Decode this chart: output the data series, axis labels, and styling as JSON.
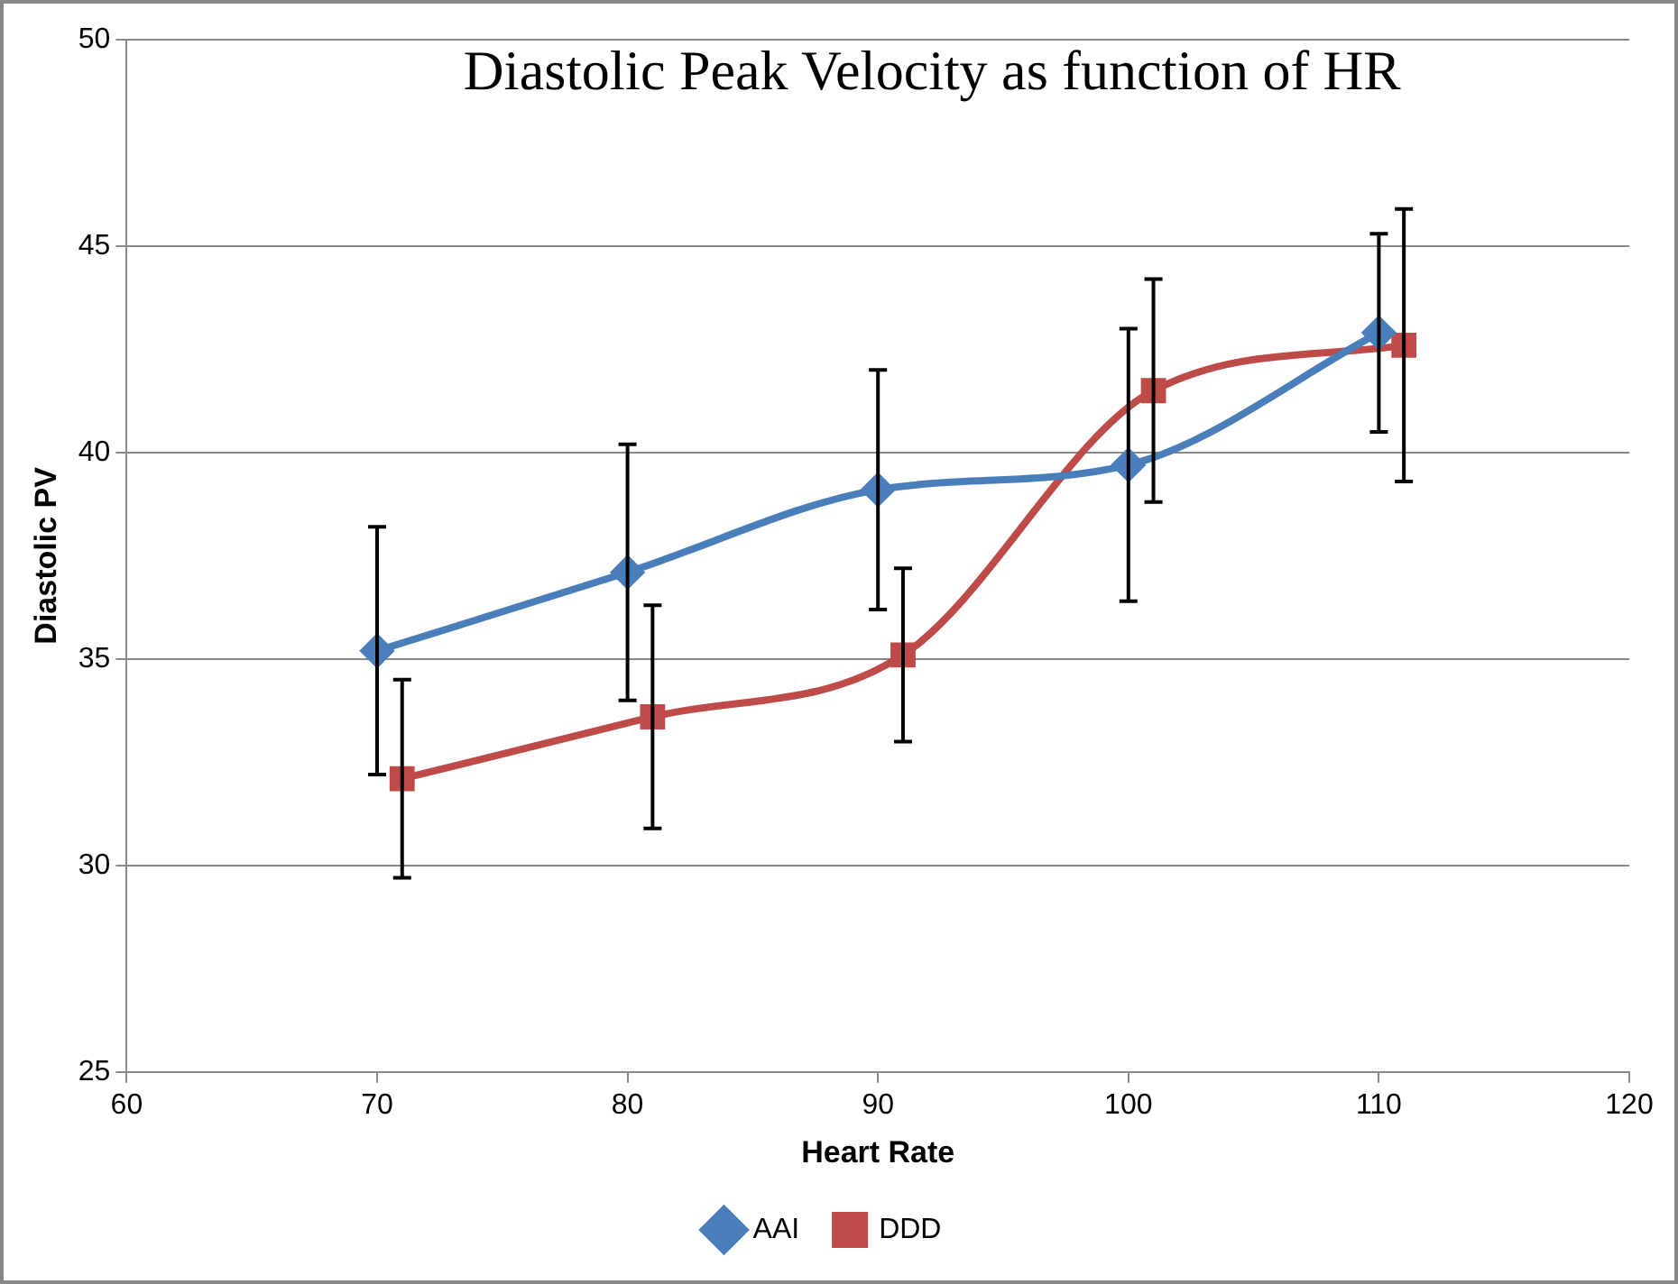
{
  "chart_data": {
    "type": "line",
    "title": "Diastolic Peak Velocity as function of HR",
    "xlabel": "Heart Rate",
    "ylabel": "Diastolic PV",
    "xlim": [
      60,
      120
    ],
    "xticks": [
      60,
      70,
      80,
      90,
      100,
      110,
      120
    ],
    "ylim": [
      25,
      50
    ],
    "yticks": [
      25,
      30,
      35,
      40,
      45,
      50
    ],
    "grid": "y",
    "legend": "bottom",
    "series": [
      {
        "name": "AAI",
        "color": "#4a7ebb",
        "marker": "diamond",
        "x": [
          70,
          80,
          90,
          100,
          110
        ],
        "values": [
          35.2,
          37.1,
          39.1,
          39.7,
          42.9
        ],
        "errors": [
          3,
          3.1,
          2.9,
          3.3,
          2.4
        ]
      },
      {
        "name": "DDD",
        "color": "#be4b48",
        "marker": "square",
        "x": [
          71,
          81,
          91,
          101,
          111
        ],
        "values": [
          32.1,
          33.6,
          35.1,
          41.5,
          42.6
        ],
        "errors": [
          2.4,
          2.7,
          2.1,
          2.7,
          3.3
        ]
      }
    ]
  }
}
